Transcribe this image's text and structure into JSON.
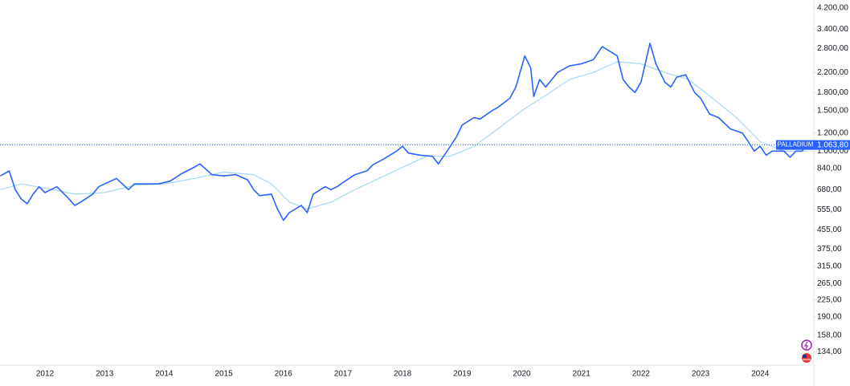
{
  "chart_data": {
    "type": "line",
    "log_scale": true,
    "grid": false,
    "xlim": [
      2011.245,
      2024.9
    ],
    "xticks": [
      2012,
      2013,
      2014,
      2015,
      2016,
      2017,
      2018,
      2019,
      2020,
      2021,
      2022,
      2023,
      2024
    ],
    "ylim": [
      117,
      4550
    ],
    "yticks": [
      {
        "value": 4200,
        "label": "4.200,00"
      },
      {
        "value": 3400,
        "label": "3.400,00"
      },
      {
        "value": 2800,
        "label": "2.800,00"
      },
      {
        "value": 2200,
        "label": "2.200,00"
      },
      {
        "value": 1800,
        "label": "1.800,00"
      },
      {
        "value": 1500,
        "label": "1.500,00"
      },
      {
        "value": 1200,
        "label": "1.200,00"
      },
      {
        "value": 1000,
        "label": "1.000,00"
      },
      {
        "value": 840,
        "label": "840,00"
      },
      {
        "value": 680,
        "label": "680,00"
      },
      {
        "value": 555,
        "label": "555,00"
      },
      {
        "value": 455,
        "label": "455,00"
      },
      {
        "value": 375,
        "label": "375,00"
      },
      {
        "value": 315,
        "label": "315,00"
      },
      {
        "value": 265,
        "label": "265,00"
      },
      {
        "value": 225,
        "label": "225,00"
      },
      {
        "value": 190,
        "label": "190,00"
      },
      {
        "value": 158,
        "label": "158,00"
      },
      {
        "value": 134,
        "label": "134,00"
      }
    ],
    "last_price": {
      "value": 1063.8,
      "label": "1.063,80"
    },
    "series": [
      {
        "name": "PALLADIUM",
        "color": "#2962ff",
        "x": [
          2011.25,
          2011.4,
          2011.5,
          2011.6,
          2011.7,
          2011.8,
          2011.9,
          2012.0,
          2012.2,
          2012.4,
          2012.5,
          2012.6,
          2012.8,
          2012.9,
          2013.0,
          2013.2,
          2013.4,
          2013.5,
          2013.7,
          2013.9,
          2014.1,
          2014.3,
          2014.5,
          2014.6,
          2014.8,
          2015.0,
          2015.2,
          2015.4,
          2015.5,
          2015.6,
          2015.8,
          2015.9,
          2016.0,
          2016.1,
          2016.3,
          2016.4,
          2016.5,
          2016.7,
          2016.8,
          2016.9,
          2017.0,
          2017.2,
          2017.4,
          2017.5,
          2017.7,
          2017.9,
          2018.0,
          2018.1,
          2018.3,
          2018.5,
          2018.6,
          2018.8,
          2018.9,
          2019.0,
          2019.2,
          2019.3,
          2019.5,
          2019.6,
          2019.8,
          2019.9,
          2020.05,
          2020.15,
          2020.2,
          2020.3,
          2020.4,
          2020.6,
          2020.8,
          2021.0,
          2021.2,
          2021.35,
          2021.5,
          2021.6,
          2021.7,
          2021.8,
          2021.9,
          2022.0,
          2022.15,
          2022.25,
          2022.4,
          2022.5,
          2022.6,
          2022.75,
          2022.9,
          2023.0,
          2023.15,
          2023.3,
          2023.5,
          2023.7,
          2023.8,
          2023.9,
          2024.0,
          2024.1,
          2024.2,
          2024.4,
          2024.5,
          2024.6,
          2024.7,
          2024.79
        ],
        "values": [
          780,
          820,
          680,
          620,
          590,
          650,
          700,
          660,
          700,
          620,
          580,
          600,
          650,
          700,
          720,
          760,
          680,
          720,
          720,
          720,
          740,
          800,
          850,
          880,
          790,
          780,
          790,
          750,
          680,
          640,
          650,
          560,
          500,
          540,
          580,
          540,
          650,
          700,
          680,
          700,
          730,
          790,
          820,
          870,
          930,
          1000,
          1050,
          980,
          960,
          950,
          880,
          1050,
          1150,
          1300,
          1400,
          1380,
          1500,
          1550,
          1700,
          1900,
          2600,
          2300,
          1730,
          2050,
          1900,
          2200,
          2350,
          2400,
          2500,
          2850,
          2700,
          2600,
          2050,
          1900,
          1800,
          2000,
          2950,
          2400,
          2000,
          1900,
          2100,
          2150,
          1800,
          1700,
          1450,
          1400,
          1250,
          1200,
          1100,
          1000,
          1050,
          960,
          1000,
          1000,
          940,
          1000,
          1000,
          1063.8
        ]
      },
      {
        "color": "#a8d8f0",
        "x": [
          2011.25,
          2011.6,
          2012.0,
          2012.5,
          2013.0,
          2013.5,
          2014.0,
          2014.5,
          2015.0,
          2015.5,
          2015.8,
          2016.1,
          2016.4,
          2016.8,
          2017.2,
          2017.6,
          2018.0,
          2018.4,
          2018.8,
          2019.2,
          2019.6,
          2020.0,
          2020.4,
          2020.8,
          2021.2,
          2021.6,
          2022.0,
          2022.4,
          2022.8,
          2023.2,
          2023.6,
          2024.0,
          2024.4,
          2024.79
        ],
        "values": [
          680,
          720,
          690,
          650,
          660,
          710,
          720,
          760,
          810,
          790,
          720,
          600,
          560,
          600,
          680,
          760,
          850,
          950,
          950,
          1050,
          1250,
          1500,
          1750,
          2050,
          2200,
          2450,
          2400,
          2200,
          2050,
          1700,
          1400,
          1100,
          1000,
          1000
        ]
      }
    ]
  }
}
